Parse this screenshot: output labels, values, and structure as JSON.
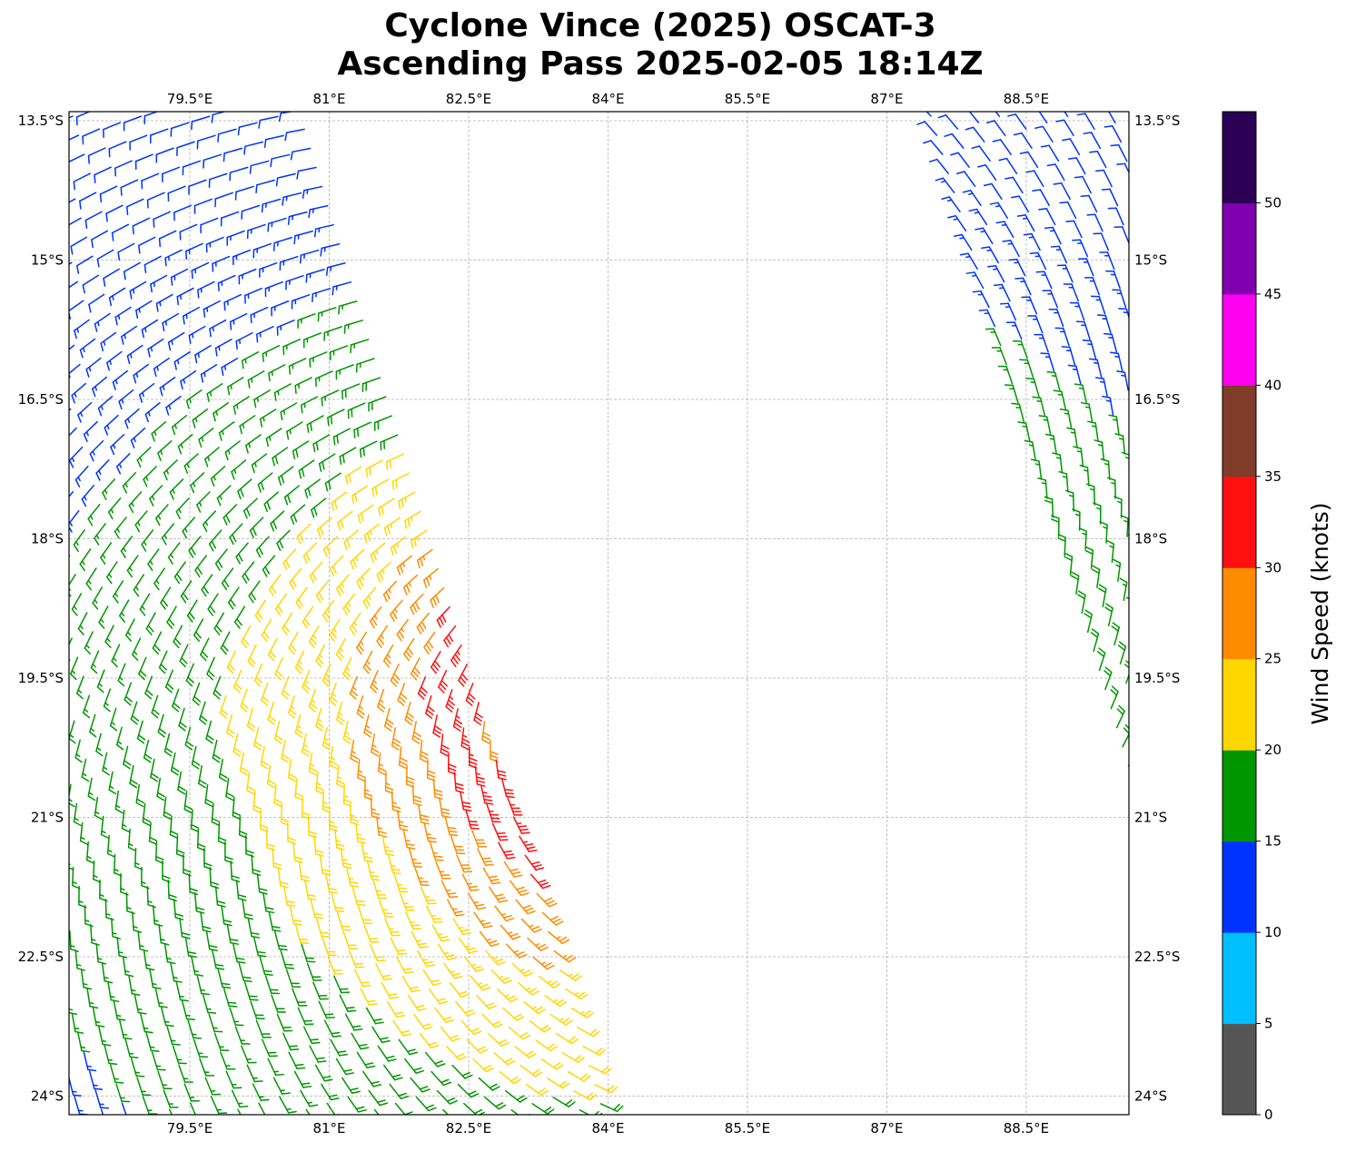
{
  "title": {
    "line1": "Cyclone Vince (2025) OSCAT-3",
    "line2": "Ascending Pass 2025-02-05 18:14Z"
  },
  "chart_data": {
    "type": "wind-barb-map",
    "xlim": [
      78.2,
      89.6
    ],
    "ylim_south_deg": [
      13.4,
      24.2
    ],
    "grid": true,
    "lon_ticks": [
      {
        "value": 79.5,
        "label": "79.5°E"
      },
      {
        "value": 81,
        "label": "81°E"
      },
      {
        "value": 82.5,
        "label": "82.5°E"
      },
      {
        "value": 84,
        "label": "84°E"
      },
      {
        "value": 85.5,
        "label": "85.5°E"
      },
      {
        "value": 87,
        "label": "87°E"
      },
      {
        "value": 88.5,
        "label": "88.5°E"
      }
    ],
    "lat_ticks": [
      {
        "value": 13.5,
        "label": "13.5°S"
      },
      {
        "value": 15,
        "label": "15°S"
      },
      {
        "value": 16.5,
        "label": "16.5°S"
      },
      {
        "value": 18,
        "label": "18°S"
      },
      {
        "value": 19.5,
        "label": "19.5°S"
      },
      {
        "value": 21,
        "label": "21°S"
      },
      {
        "value": 22.5,
        "label": "22.5°S"
      },
      {
        "value": 24,
        "label": "24°S"
      }
    ],
    "colorbar": {
      "label": "Wind Speed (knots)",
      "bounds": [
        0,
        5,
        10,
        15,
        20,
        25,
        30,
        35,
        40,
        45,
        50,
        55
      ],
      "tick_labels": [
        "0",
        "5",
        "10",
        "15",
        "20",
        "25",
        "30",
        "35",
        "40",
        "45",
        "50"
      ],
      "colors": [
        "#555555",
        "#00bfff",
        "#0033ff",
        "#009600",
        "#ffd700",
        "#ff8c00",
        "#ff1010",
        "#803c28",
        "#ff00f0",
        "#8000b0",
        "#2c0055"
      ]
    },
    "max_wind_kt_range": [
      30,
      35
    ],
    "max_wind_location": "near 82.6°E, 19.6°S"
  }
}
